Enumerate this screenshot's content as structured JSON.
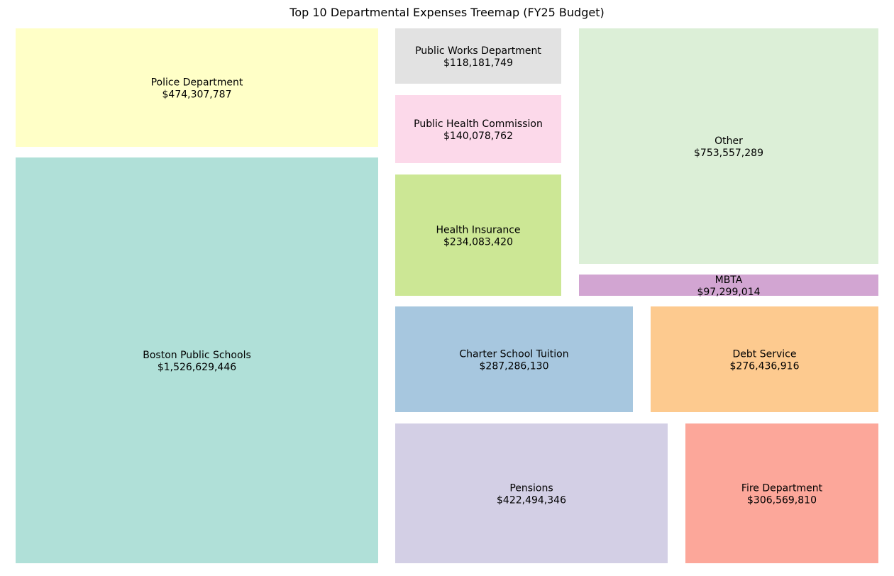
{
  "chart_data": {
    "type": "treemap",
    "title": "Top 10 Departmental Expenses Treemap (FY25 Budget)",
    "items": [
      {
        "label": "Boston Public Schools",
        "value": 1526629446,
        "value_text": "$1,526,629,446",
        "color": "#b0e0d8"
      },
      {
        "label": "Police Department",
        "value": 474307787,
        "value_text": "$474,307,787",
        "color": "#ffffc7"
      },
      {
        "label": "Public Works Department",
        "value": 118181749,
        "value_text": "$118,181,749",
        "color": "#e2e2e2"
      },
      {
        "label": "Public Health Commission",
        "value": 140078762,
        "value_text": "$140,078,762",
        "color": "#fcd9ea"
      },
      {
        "label": "Health Insurance",
        "value": 234083420,
        "value_text": "$234,083,420",
        "color": "#cce795"
      },
      {
        "label": "Other",
        "value": 753557289,
        "value_text": "$753,557,289",
        "color": "#dcefd7"
      },
      {
        "label": "MBTA",
        "value": 97299014,
        "value_text": "$97,299,014",
        "color": "#d2a5d2"
      },
      {
        "label": "Charter School Tuition",
        "value": 287286130,
        "value_text": "$287,286,130",
        "color": "#a7c7df"
      },
      {
        "label": "Debt Service",
        "value": 276436916,
        "value_text": "$276,436,916",
        "color": "#fdca8f"
      },
      {
        "label": "Pensions",
        "value": 422494346,
        "value_text": "$422,494,346",
        "color": "#d3cfe5"
      },
      {
        "label": "Fire Department",
        "value": 306569810,
        "value_text": "$306,569,810",
        "color": "#fca79a"
      }
    ]
  }
}
